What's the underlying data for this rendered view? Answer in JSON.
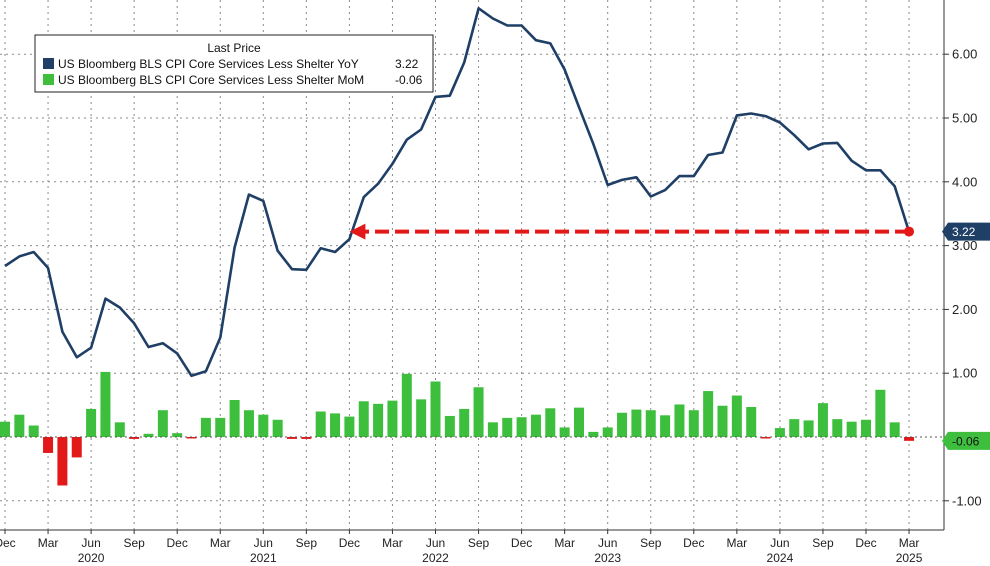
{
  "chart_data": {
    "type": "line",
    "legend": {
      "title": "Last Price",
      "placement": "top-left",
      "entries": [
        {
          "label": "US Bloomberg BLS CPI Core Services Less Shelter YoY",
          "value": "3.22",
          "color": "#1f3f66"
        },
        {
          "label": "US Bloomberg BLS CPI Core Services Less Shelter MoM",
          "value": "-0.06",
          "color": "#3dbf3d"
        }
      ]
    },
    "y_axis": {
      "min": -1.3,
      "max": 6.8,
      "position": "right",
      "tick_values": [
        -1,
        1,
        2,
        3,
        4,
        5,
        6
      ],
      "tick_labels": [
        "-1.00",
        "1.00",
        "2.00",
        "3.00",
        "4.00",
        "5.00",
        "6.00"
      ]
    },
    "x_axis": {
      "month_labels": [
        "Dec",
        "Mar",
        "Jun",
        "Sep",
        "Dec",
        "Mar",
        "Jun",
        "Sep",
        "Dec",
        "Mar",
        "Jun",
        "Sep",
        "Dec",
        "Mar",
        "Jun",
        "Sep",
        "Dec",
        "Mar",
        "Jun",
        "Sep",
        "Dec",
        "Mar"
      ],
      "month_label_index": [
        0,
        3,
        6,
        9,
        12,
        15,
        18,
        21,
        24,
        27,
        30,
        33,
        36,
        39,
        42,
        45,
        48,
        51,
        54,
        57,
        60,
        63
      ],
      "year_labels": [
        "2020",
        "2021",
        "2022",
        "2023",
        "2024",
        "2025"
      ],
      "year_label_index": [
        6,
        18,
        30,
        42,
        54,
        63
      ]
    },
    "grid": true,
    "x": [
      "Dec 2019",
      "Jan 2020",
      "Feb 2020",
      "Mar 2020",
      "Apr 2020",
      "May 2020",
      "Jun 2020",
      "Jul 2020",
      "Aug 2020",
      "Sep 2020",
      "Oct 2020",
      "Nov 2020",
      "Dec 2020",
      "Jan 2021",
      "Feb 2021",
      "Mar 2021",
      "Apr 2021",
      "May 2021",
      "Jun 2021",
      "Jul 2021",
      "Aug 2021",
      "Sep 2021",
      "Oct 2021",
      "Nov 2021",
      "Dec 2021",
      "Jan 2022",
      "Feb 2022",
      "Mar 2022",
      "Apr 2022",
      "May 2022",
      "Jun 2022",
      "Jul 2022",
      "Aug 2022",
      "Sep 2022",
      "Oct 2022",
      "Nov 2022",
      "Dec 2022",
      "Jan 2023",
      "Feb 2023",
      "Mar 2023",
      "Apr 2023",
      "May 2023",
      "Jun 2023",
      "Jul 2023",
      "Aug 2023",
      "Sep 2023",
      "Oct 2023",
      "Nov 2023",
      "Dec 2023",
      "Jan 2024",
      "Feb 2024",
      "Mar 2024",
      "Apr 2024",
      "May 2024",
      "Jun 2024",
      "Jul 2024",
      "Aug 2024",
      "Sep 2024",
      "Oct 2024",
      "Nov 2024",
      "Dec 2024",
      "Jan 2025",
      "Feb 2025",
      "Mar 2025"
    ],
    "series": [
      {
        "name": "US Bloomberg BLS CPI Core Services Less Shelter YoY",
        "kind": "line",
        "color": "#1f3f66",
        "values": [
          2.68,
          2.83,
          2.9,
          2.65,
          1.65,
          1.25,
          1.4,
          2.17,
          2.03,
          1.78,
          1.41,
          1.47,
          1.31,
          0.96,
          1.03,
          1.56,
          2.97,
          3.8,
          3.7,
          2.92,
          2.63,
          2.62,
          2.96,
          2.9,
          3.1,
          3.76,
          3.97,
          4.28,
          4.66,
          4.82,
          5.33,
          5.35,
          5.87,
          6.72,
          6.56,
          6.45,
          6.45,
          6.22,
          6.17,
          5.76,
          5.17,
          4.59,
          3.95,
          4.03,
          4.07,
          3.77,
          3.87,
          4.09,
          4.09,
          4.42,
          4.46,
          5.04,
          5.07,
          5.03,
          4.93,
          4.73,
          4.51,
          4.6,
          4.61,
          4.33,
          4.18,
          4.18,
          3.93,
          3.22
        ]
      },
      {
        "name": "US Bloomberg BLS CPI Core Services Less Shelter MoM",
        "kind": "bar",
        "color": "#3dbf3d",
        "negative_color": "#e31919",
        "values": [
          0.24,
          0.35,
          0.18,
          -0.25,
          -0.76,
          -0.32,
          0.44,
          1.02,
          0.23,
          -0.03,
          0.05,
          0.42,
          0.06,
          -0.02,
          0.3,
          0.3,
          0.58,
          0.42,
          0.35,
          0.27,
          -0.03,
          -0.03,
          0.4,
          0.37,
          0.32,
          0.56,
          0.52,
          0.57,
          0.99,
          0.59,
          0.87,
          0.33,
          0.44,
          0.78,
          0.23,
          0.3,
          0.31,
          0.35,
          0.45,
          0.15,
          0.46,
          0.08,
          0.15,
          0.38,
          0.43,
          0.42,
          0.34,
          0.51,
          0.42,
          0.72,
          0.49,
          0.65,
          0.47,
          -0.01,
          0.14,
          0.28,
          0.26,
          0.53,
          0.28,
          0.24,
          0.27,
          0.74,
          0.23,
          -0.06
        ]
      }
    ],
    "annotations": [
      {
        "type": "arrow",
        "style": "dashed",
        "color": "#e31919",
        "from_index": 63,
        "to_index": 24,
        "value": 3.22
      }
    ],
    "last_value_badges": [
      {
        "text": "3.22",
        "value": 3.22,
        "color": "#1f3f66"
      },
      {
        "text": "-0.06",
        "value": -0.06,
        "color": "#3dbf3d"
      }
    ]
  }
}
